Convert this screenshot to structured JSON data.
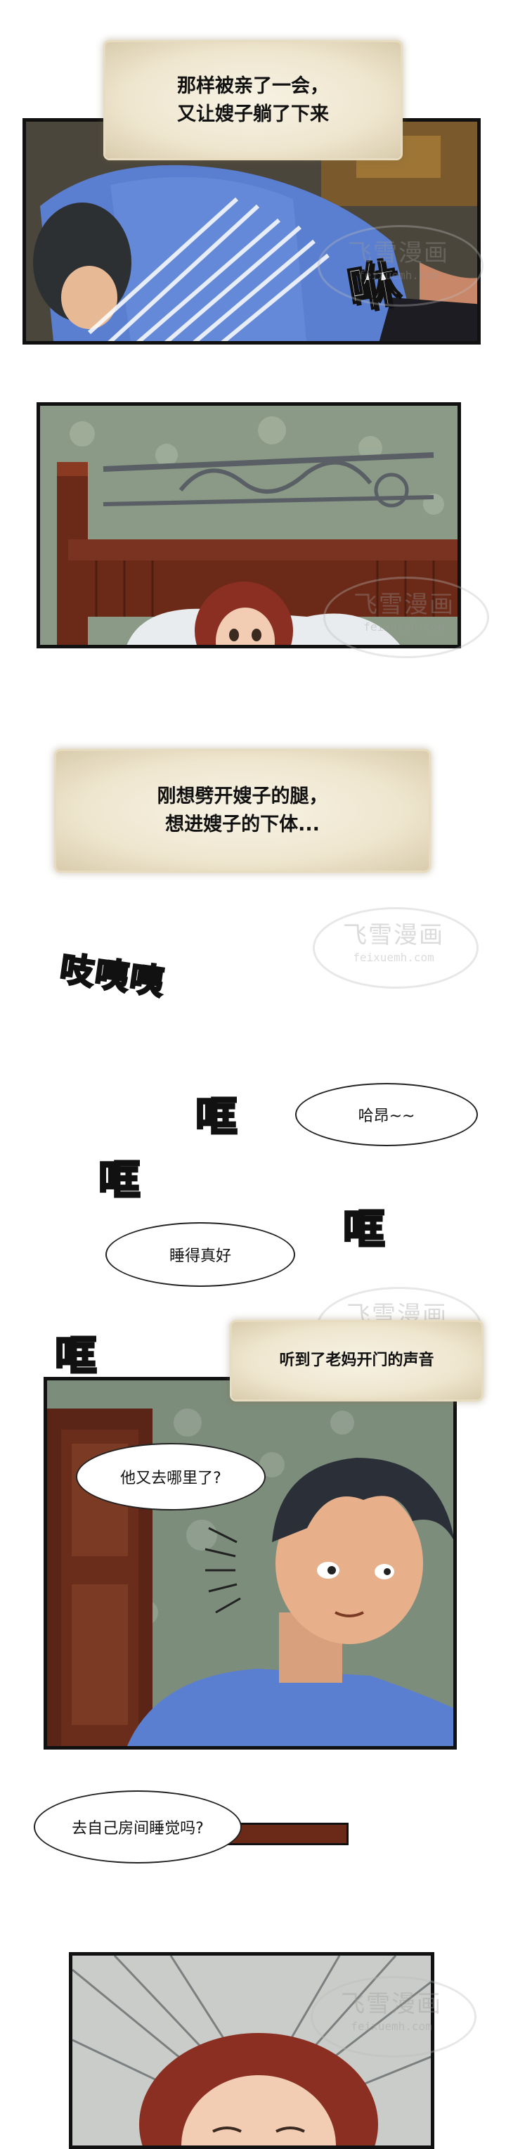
{
  "captions": [
    "那样被亲了一会，\n又让嫂子躺了下来",
    "刚想劈开嫂子的腿，\n想进嫂子的下体...",
    "听到了老妈开门的声音"
  ],
  "sfx": {
    "kiss": "咻",
    "squeak": "吱咦咦",
    "bang_1": "哐",
    "bang_2": "哐",
    "bang_3": "哐",
    "bang_4": "哐"
  },
  "bubbles": {
    "moan": "哈昂~~",
    "sleep_well": "睡得真好",
    "where_did_he_go": "他又去哪里了?",
    "own_room": "去自己房间睡觉吗?"
  },
  "watermark": {
    "brand": "飞雪漫画",
    "domain": "feixuemh.com"
  },
  "colors": {
    "panel_border": "#111111",
    "caption_bg": "#efe6cf",
    "shirt_blue": "#5b7fd0",
    "wall_green": "#8a9a86",
    "hair_red": "#8a2f22",
    "wood_brown": "#6b2a18"
  }
}
